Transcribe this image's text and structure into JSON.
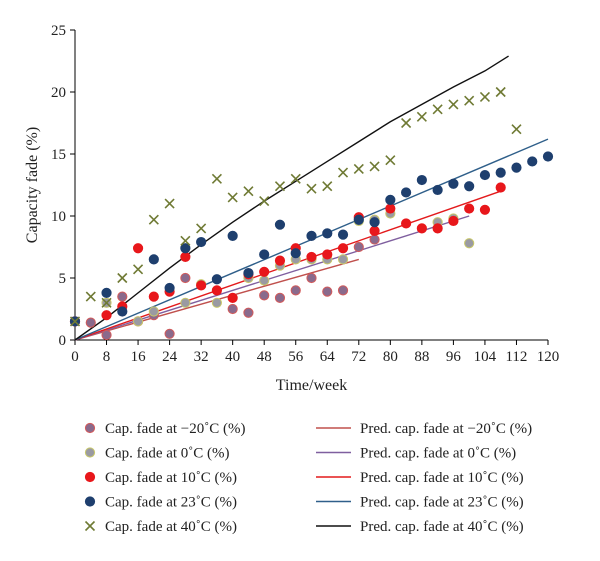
{
  "chart_data": {
    "type": "scatter",
    "xlabel": "Time/week",
    "ylabel": "Capacity fade (%)",
    "xlim": [
      0,
      120
    ],
    "ylim": [
      0,
      25
    ],
    "xticks": [
      0,
      8,
      16,
      24,
      32,
      40,
      48,
      56,
      64,
      72,
      80,
      88,
      96,
      104,
      112,
      120
    ],
    "yticks": [
      0,
      5,
      10,
      15,
      20,
      25
    ],
    "grid": false,
    "legend_position": "bottom",
    "series": [
      {
        "name": "Cap. fade at −20˚C (%)",
        "kind": "scatter",
        "marker": "circle",
        "color": "#8a6a8c",
        "edge": "#d35a5a",
        "points": [
          [
            0,
            1.5
          ],
          [
            4,
            1.4
          ],
          [
            8,
            0.4
          ],
          [
            12,
            3.5
          ],
          [
            16,
            1.5
          ],
          [
            20,
            2.0
          ],
          [
            24,
            0.5
          ],
          [
            28,
            5.0
          ],
          [
            40,
            2.5
          ],
          [
            44,
            2.2
          ],
          [
            48,
            3.6
          ],
          [
            52,
            3.4
          ],
          [
            56,
            4.0
          ],
          [
            60,
            5.0
          ],
          [
            64,
            3.9
          ],
          [
            68,
            4.0
          ],
          [
            72,
            7.5
          ],
          [
            76,
            8.1
          ]
        ]
      },
      {
        "name": "Cap. fade at 0˚C (%)",
        "kind": "scatter",
        "marker": "circle",
        "color": "#9a9aa2",
        "edge": "#c8c86a",
        "points": [
          [
            8,
            3.0
          ],
          [
            16,
            1.5
          ],
          [
            20,
            2.3
          ],
          [
            28,
            3.0
          ],
          [
            32,
            4.5
          ],
          [
            36,
            3.0
          ],
          [
            44,
            5.0
          ],
          [
            48,
            4.8
          ],
          [
            52,
            6.0
          ],
          [
            56,
            6.5
          ],
          [
            60,
            6.5
          ],
          [
            64,
            6.5
          ],
          [
            68,
            6.5
          ],
          [
            72,
            9.6
          ],
          [
            76,
            9.7
          ],
          [
            80,
            10.2
          ],
          [
            92,
            9.5
          ],
          [
            96,
            9.8
          ],
          [
            100,
            7.8
          ]
        ]
      },
      {
        "name": "Cap. fade at 10˚C (%)",
        "kind": "scatter",
        "marker": "circle",
        "color": "#e8171b",
        "edge": "#e8171b",
        "points": [
          [
            0,
            1.5
          ],
          [
            8,
            2.0
          ],
          [
            12,
            2.7
          ],
          [
            16,
            7.4
          ],
          [
            20,
            3.5
          ],
          [
            24,
            3.9
          ],
          [
            28,
            6.7
          ],
          [
            32,
            4.4
          ],
          [
            36,
            4.0
          ],
          [
            40,
            3.4
          ],
          [
            44,
            5.3
          ],
          [
            48,
            5.5
          ],
          [
            52,
            6.4
          ],
          [
            56,
            7.4
          ],
          [
            60,
            6.7
          ],
          [
            64,
            6.9
          ],
          [
            68,
            7.4
          ],
          [
            72,
            9.9
          ],
          [
            76,
            8.8
          ],
          [
            80,
            10.6
          ],
          [
            84,
            9.4
          ],
          [
            88,
            9.0
          ],
          [
            92,
            9.0
          ],
          [
            96,
            9.6
          ],
          [
            100,
            10.6
          ],
          [
            104,
            10.5
          ],
          [
            108,
            12.3
          ]
        ]
      },
      {
        "name": "Cap. fade at 23˚C (%)",
        "kind": "scatter",
        "marker": "circle",
        "color": "#1e3f6e",
        "edge": "#1e3f6e",
        "points": [
          [
            0,
            1.5
          ],
          [
            8,
            3.8
          ],
          [
            12,
            2.3
          ],
          [
            20,
            6.5
          ],
          [
            24,
            4.2
          ],
          [
            28,
            7.4
          ],
          [
            32,
            7.9
          ],
          [
            36,
            4.9
          ],
          [
            40,
            8.4
          ],
          [
            44,
            5.4
          ],
          [
            48,
            6.9
          ],
          [
            52,
            9.3
          ],
          [
            56,
            7.0
          ],
          [
            60,
            8.4
          ],
          [
            64,
            8.6
          ],
          [
            68,
            8.5
          ],
          [
            72,
            9.7
          ],
          [
            76,
            9.5
          ],
          [
            80,
            11.3
          ],
          [
            84,
            11.9
          ],
          [
            88,
            12.9
          ],
          [
            92,
            12.1
          ],
          [
            96,
            12.6
          ],
          [
            100,
            12.4
          ],
          [
            104,
            13.3
          ],
          [
            108,
            13.5
          ],
          [
            112,
            13.9
          ],
          [
            116,
            14.4
          ],
          [
            120,
            14.8
          ]
        ]
      },
      {
        "name": "Cap. fade at 40˚C (%)",
        "kind": "scatter",
        "marker": "x",
        "color": "#6f7a34",
        "edge": "#6f7a34",
        "points": [
          [
            0,
            1.5
          ],
          [
            4,
            3.5
          ],
          [
            8,
            3.0
          ],
          [
            12,
            5.0
          ],
          [
            16,
            5.7
          ],
          [
            20,
            9.7
          ],
          [
            24,
            11.0
          ],
          [
            28,
            8.0
          ],
          [
            32,
            9.0
          ],
          [
            36,
            13.0
          ],
          [
            40,
            11.5
          ],
          [
            44,
            12.0
          ],
          [
            48,
            11.2
          ],
          [
            52,
            12.4
          ],
          [
            56,
            13.0
          ],
          [
            60,
            12.2
          ],
          [
            64,
            12.4
          ],
          [
            68,
            13.5
          ],
          [
            72,
            13.8
          ],
          [
            76,
            14.0
          ],
          [
            80,
            14.5
          ],
          [
            84,
            17.5
          ],
          [
            88,
            18.0
          ],
          [
            92,
            18.6
          ],
          [
            96,
            19.0
          ],
          [
            100,
            19.3
          ],
          [
            104,
            19.6
          ],
          [
            108,
            20.0
          ],
          [
            112,
            17.0
          ]
        ]
      },
      {
        "name": "Pred. cap. fade at −20˚C (%)",
        "kind": "line",
        "color": "#c0504d",
        "points": [
          [
            0,
            0
          ],
          [
            72,
            6.5
          ]
        ]
      },
      {
        "name": "Pred. cap. fade at 0˚C (%)",
        "kind": "line",
        "color": "#7f5f9f",
        "points": [
          [
            0,
            0
          ],
          [
            100,
            10.0
          ]
        ]
      },
      {
        "name": "Pred. cap. fade at 10˚C (%)",
        "kind": "line",
        "color": "#e31a1c",
        "points": [
          [
            0,
            0
          ],
          [
            108,
            12.0
          ]
        ]
      },
      {
        "name": "Pred. cap. fade at 23˚C (%)",
        "kind": "line",
        "color": "#2f5f8a",
        "points": [
          [
            0,
            0
          ],
          [
            120,
            16.2
          ]
        ]
      },
      {
        "name": "Pred. cap. fade at 40˚C (%)",
        "kind": "line",
        "color": "#111111",
        "points": [
          [
            0,
            0
          ],
          [
            8,
            1.8
          ],
          [
            16,
            3.8
          ],
          [
            24,
            5.8
          ],
          [
            32,
            7.7
          ],
          [
            40,
            9.5
          ],
          [
            48,
            11.2
          ],
          [
            56,
            12.8
          ],
          [
            64,
            14.4
          ],
          [
            72,
            16.0
          ],
          [
            80,
            17.6
          ],
          [
            88,
            19.0
          ],
          [
            96,
            20.4
          ],
          [
            104,
            21.7
          ],
          [
            110,
            22.9
          ]
        ]
      }
    ]
  }
}
